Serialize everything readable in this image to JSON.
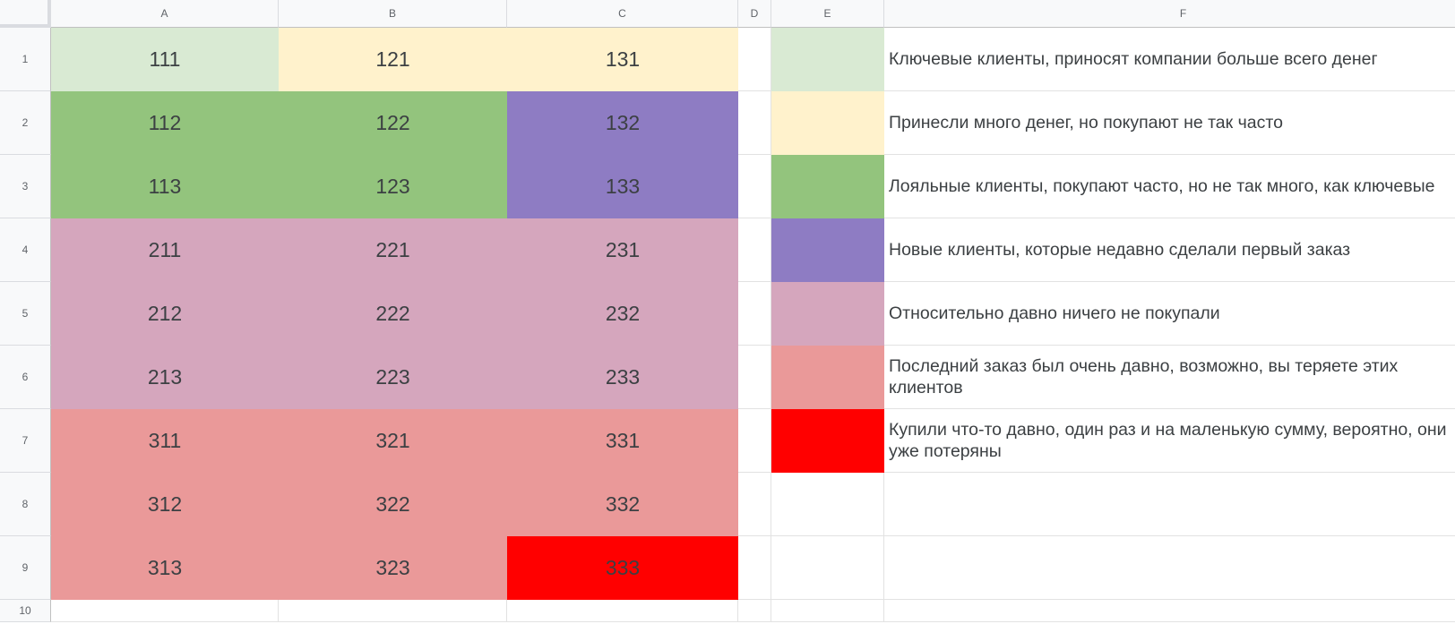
{
  "columns": [
    "A",
    "B",
    "C",
    "D",
    "E",
    "F"
  ],
  "rows": [
    "1",
    "2",
    "3",
    "4",
    "5",
    "6",
    "7",
    "8",
    "9",
    "10"
  ],
  "colors": {
    "light_green": "#d9ead3",
    "light_yellow": "#fff2cc",
    "green": "#93c47d",
    "purple": "#8e7cc3",
    "pink": "#d5a6bd",
    "salmon": "#ea9999",
    "red": "#ff0000"
  },
  "grid": [
    [
      {
        "v": "111",
        "c": "#d9ead3"
      },
      {
        "v": "121",
        "c": "#fff2cc"
      },
      {
        "v": "131",
        "c": "#fff2cc"
      }
    ],
    [
      {
        "v": "112",
        "c": "#93c47d"
      },
      {
        "v": "122",
        "c": "#93c47d"
      },
      {
        "v": "132",
        "c": "#8e7cc3"
      }
    ],
    [
      {
        "v": "113",
        "c": "#93c47d"
      },
      {
        "v": "123",
        "c": "#93c47d"
      },
      {
        "v": "133",
        "c": "#8e7cc3"
      }
    ],
    [
      {
        "v": "211",
        "c": "#d5a6bd"
      },
      {
        "v": "221",
        "c": "#d5a6bd"
      },
      {
        "v": "231",
        "c": "#d5a6bd"
      }
    ],
    [
      {
        "v": "212",
        "c": "#d5a6bd"
      },
      {
        "v": "222",
        "c": "#d5a6bd"
      },
      {
        "v": "232",
        "c": "#d5a6bd"
      }
    ],
    [
      {
        "v": "213",
        "c": "#d5a6bd"
      },
      {
        "v": "223",
        "c": "#d5a6bd"
      },
      {
        "v": "233",
        "c": "#d5a6bd"
      }
    ],
    [
      {
        "v": "311",
        "c": "#ea9999"
      },
      {
        "v": "321",
        "c": "#ea9999"
      },
      {
        "v": "331",
        "c": "#ea9999"
      }
    ],
    [
      {
        "v": "312",
        "c": "#ea9999"
      },
      {
        "v": "322",
        "c": "#ea9999"
      },
      {
        "v": "332",
        "c": "#ea9999"
      }
    ],
    [
      {
        "v": "313",
        "c": "#ea9999"
      },
      {
        "v": "323",
        "c": "#ea9999"
      },
      {
        "v": "333",
        "c": "#ff0000"
      }
    ]
  ],
  "legend": [
    {
      "color": "#d9ead3",
      "text": "Ключевые клиенты, приносят компании больше всего денег"
    },
    {
      "color": "#fff2cc",
      "text": "Принесли много денег, но покупают не так часто"
    },
    {
      "color": "#93c47d",
      "text": "Лояльные клиенты, покупают часто, но не так много, как ключевые"
    },
    {
      "color": "#8e7cc3",
      "text": "Новые клиенты, которые недавно сделали первый заказ"
    },
    {
      "color": "#d5a6bd",
      "text": "Относительно давно ничего не покупали"
    },
    {
      "color": "#ea9999",
      "text": "Последний заказ был очень давно, возможно, вы теряете этих клиентов"
    },
    {
      "color": "#ff0000",
      "text": "Купили что-то давно, один раз и на маленькую сумму, вероятно, они уже потеряны"
    }
  ]
}
